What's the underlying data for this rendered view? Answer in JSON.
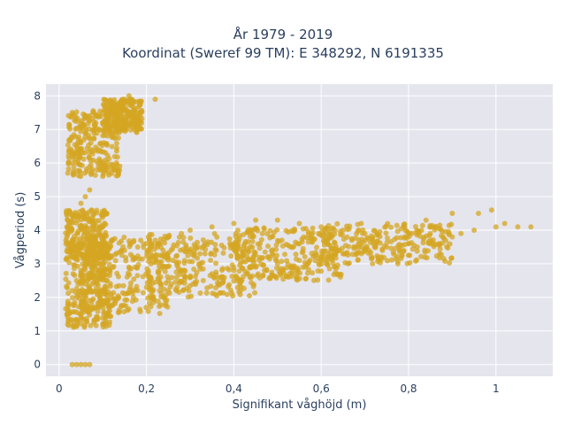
{
  "chart_data": {
    "type": "scatter",
    "title": "År 1979 - 2019",
    "subtitle": "Koordinat (Sweref 99 TM): E 348292, N 6191335",
    "xlabel": "Signifikant våghöjd (m)",
    "ylabel": "Vågperiod (s)",
    "xlim": [
      -0.03,
      1.13
    ],
    "ylim": [
      -0.35,
      8.35
    ],
    "x_ticks": [
      0,
      0.2,
      0.4,
      0.6,
      0.8,
      1
    ],
    "x_tick_labels": [
      "0",
      "0,2",
      "0,4",
      "0,6",
      "0,8",
      "1"
    ],
    "y_ticks": [
      0,
      1,
      2,
      3,
      4,
      5,
      6,
      7,
      8
    ],
    "y_tick_labels": [
      "0",
      "1",
      "2",
      "3",
      "4",
      "5",
      "6",
      "7",
      "8"
    ],
    "grid": true,
    "legend": "none",
    "marker_color": "#d4a521",
    "plot_background": "#e5e5ee",
    "series": [
      {
        "points": [
          [
            0.03,
            0.0
          ],
          [
            0.04,
            0.0
          ],
          [
            0.05,
            0.0
          ],
          [
            0.06,
            0.0
          ],
          [
            0.07,
            0.0
          ],
          [
            0.02,
            1.4
          ],
          [
            0.02,
            1.8
          ],
          [
            0.03,
            2.2
          ],
          [
            0.04,
            2.5
          ],
          [
            0.05,
            2.8
          ],
          [
            0.06,
            3.1
          ],
          [
            0.07,
            3.3
          ],
          [
            0.08,
            3.5
          ],
          [
            0.09,
            3.6
          ],
          [
            0.1,
            3.7
          ],
          [
            0.03,
            1.3
          ],
          [
            0.05,
            1.5
          ],
          [
            0.07,
            1.6
          ],
          [
            0.09,
            1.7
          ],
          [
            0.1,
            1.9
          ],
          [
            0.12,
            2.0
          ],
          [
            0.15,
            2.1
          ],
          [
            0.18,
            2.2
          ],
          [
            0.2,
            2.3
          ],
          [
            0.12,
            3.2
          ],
          [
            0.15,
            3.4
          ],
          [
            0.18,
            3.5
          ],
          [
            0.2,
            3.6
          ],
          [
            0.22,
            3.7
          ],
          [
            0.25,
            3.8
          ],
          [
            0.28,
            3.9
          ],
          [
            0.3,
            4.0
          ],
          [
            0.25,
            2.5
          ],
          [
            0.3,
            2.6
          ],
          [
            0.35,
            2.7
          ],
          [
            0.4,
            2.8
          ],
          [
            0.45,
            2.9
          ],
          [
            0.5,
            3.0
          ],
          [
            0.55,
            3.1
          ],
          [
            0.6,
            3.2
          ],
          [
            0.35,
            4.1
          ],
          [
            0.4,
            4.2
          ],
          [
            0.45,
            4.3
          ],
          [
            0.5,
            4.3
          ],
          [
            0.55,
            4.2
          ],
          [
            0.6,
            4.1
          ],
          [
            0.65,
            4.0
          ],
          [
            0.7,
            3.9
          ],
          [
            0.65,
            3.3
          ],
          [
            0.7,
            3.4
          ],
          [
            0.75,
            3.5
          ],
          [
            0.8,
            3.6
          ],
          [
            0.85,
            3.7
          ],
          [
            0.9,
            3.8
          ],
          [
            0.95,
            4.0
          ],
          [
            1.0,
            4.1
          ],
          [
            0.84,
            4.3
          ],
          [
            0.9,
            4.5
          ],
          [
            0.96,
            4.5
          ],
          [
            0.99,
            4.6
          ],
          [
            1.02,
            4.2
          ],
          [
            1.05,
            4.1
          ],
          [
            1.08,
            4.1
          ],
          [
            0.02,
            5.7
          ],
          [
            0.03,
            6.0
          ],
          [
            0.04,
            6.3
          ],
          [
            0.05,
            6.6
          ],
          [
            0.06,
            6.9
          ],
          [
            0.08,
            7.0
          ],
          [
            0.1,
            7.2
          ],
          [
            0.12,
            7.4
          ],
          [
            0.13,
            7.6
          ],
          [
            0.14,
            7.8
          ],
          [
            0.15,
            7.9
          ],
          [
            0.16,
            8.0
          ],
          [
            0.18,
            7.2
          ],
          [
            0.17,
            7.5
          ],
          [
            0.22,
            7.9
          ],
          [
            0.02,
            3.6
          ],
          [
            0.03,
            4.0
          ],
          [
            0.04,
            4.4
          ],
          [
            0.05,
            4.8
          ],
          [
            0.06,
            5.0
          ],
          [
            0.07,
            5.2
          ],
          [
            0.1,
            5.6
          ],
          [
            0.09,
            5.9
          ],
          [
            0.11,
            2.5
          ],
          [
            0.16,
            2.9
          ],
          [
            0.21,
            3.0
          ],
          [
            0.26,
            3.1
          ],
          [
            0.31,
            3.3
          ],
          [
            0.36,
            3.4
          ],
          [
            0.41,
            3.5
          ],
          [
            0.46,
            3.6
          ],
          [
            0.51,
            3.7
          ],
          [
            0.56,
            3.8
          ],
          [
            0.61,
            3.7
          ],
          [
            0.13,
            1.9
          ],
          [
            0.17,
            2.0
          ],
          [
            0.23,
            2.2
          ],
          [
            0.27,
            2.3
          ],
          [
            0.33,
            2.5
          ],
          [
            0.37,
            2.6
          ],
          [
            0.43,
            2.7
          ],
          [
            0.47,
            2.8
          ],
          [
            0.53,
            2.9
          ],
          [
            0.57,
            3.0
          ],
          [
            0.68,
            3.5
          ],
          [
            0.72,
            3.6
          ],
          [
            0.78,
            3.4
          ],
          [
            0.82,
            3.5
          ],
          [
            0.87,
            3.6
          ],
          [
            0.92,
            3.9
          ],
          [
            0.04,
            2.0
          ],
          [
            0.06,
            2.4
          ],
          [
            0.08,
            2.7
          ],
          [
            0.1,
            3.0
          ]
        ],
        "clusters": [
          {
            "x_min": 0.015,
            "x_max": 0.12,
            "y_min": 1.1,
            "y_max": 3.6
          },
          {
            "x_min": 0.05,
            "x_max": 0.25,
            "y_min": 1.5,
            "y_max": 3.8
          },
          {
            "x_min": 0.2,
            "x_max": 0.45,
            "y_min": 2.0,
            "y_max": 3.9
          },
          {
            "x_min": 0.4,
            "x_max": 0.65,
            "y_min": 2.5,
            "y_max": 4.1
          },
          {
            "x_min": 0.6,
            "x_max": 0.9,
            "y_min": 3.0,
            "y_max": 4.2
          },
          {
            "x_min": 0.02,
            "x_max": 0.14,
            "y_min": 5.6,
            "y_max": 7.6
          },
          {
            "x_min": 0.1,
            "x_max": 0.19,
            "y_min": 6.9,
            "y_max": 7.9
          },
          {
            "x_min": 0.015,
            "x_max": 0.11,
            "y_min": 3.1,
            "y_max": 4.6
          }
        ]
      }
    ]
  }
}
